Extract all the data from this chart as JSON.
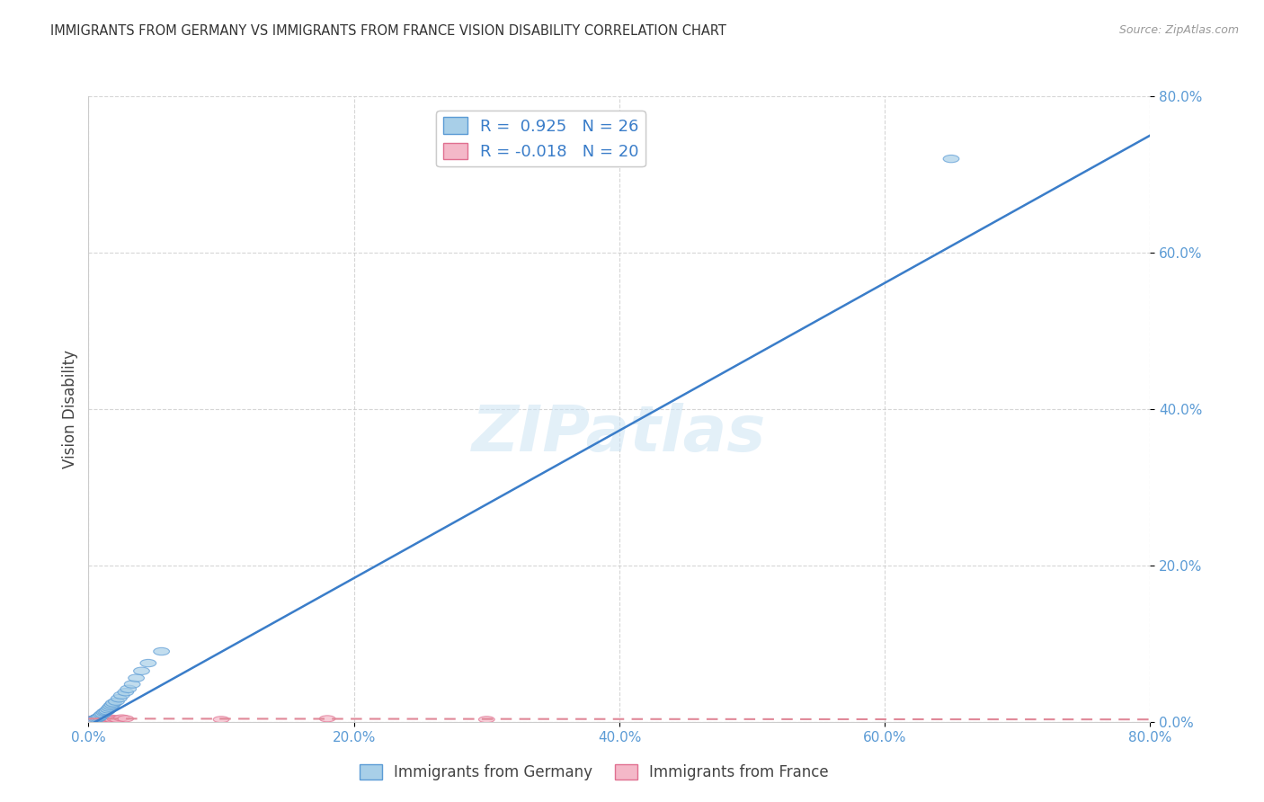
{
  "title": "IMMIGRANTS FROM GERMANY VS IMMIGRANTS FROM FRANCE VISION DISABILITY CORRELATION CHART",
  "source": "Source: ZipAtlas.com",
  "ylabel": "Vision Disability",
  "xlim": [
    0,
    0.8
  ],
  "ylim": [
    0,
    0.8
  ],
  "ytick_labels": [
    "0.0%",
    "20.0%",
    "40.0%",
    "60.0%",
    "80.0%"
  ],
  "ytick_values": [
    0.0,
    0.2,
    0.4,
    0.6,
    0.8
  ],
  "xtick_labels": [
    "0.0%",
    "20.0%",
    "40.0%",
    "60.0%",
    "80.0%"
  ],
  "xtick_values": [
    0.0,
    0.2,
    0.4,
    0.6,
    0.8
  ],
  "germany_r": 0.925,
  "germany_n": 26,
  "france_r": -0.018,
  "france_n": 20,
  "germany_color": "#a8cfe8",
  "france_color": "#f4b8c8",
  "germany_edge_color": "#5b9bd5",
  "france_edge_color": "#e07090",
  "germany_line_color": "#3a7dc9",
  "france_line_color": "#e08898",
  "watermark": "ZIPatlas",
  "germany_x": [
    0.004,
    0.006,
    0.007,
    0.008,
    0.009,
    0.01,
    0.011,
    0.012,
    0.013,
    0.014,
    0.015,
    0.016,
    0.017,
    0.018,
    0.019,
    0.021,
    0.023,
    0.025,
    0.028,
    0.03,
    0.033,
    0.036,
    0.04,
    0.045,
    0.055,
    0.65
  ],
  "germany_y": [
    0.003,
    0.004,
    0.005,
    0.006,
    0.007,
    0.009,
    0.01,
    0.012,
    0.013,
    0.014,
    0.016,
    0.018,
    0.02,
    0.022,
    0.024,
    0.026,
    0.03,
    0.034,
    0.038,
    0.042,
    0.048,
    0.056,
    0.065,
    0.075,
    0.09,
    0.72
  ],
  "france_x": [
    0.003,
    0.005,
    0.006,
    0.007,
    0.008,
    0.009,
    0.01,
    0.011,
    0.012,
    0.014,
    0.015,
    0.016,
    0.018,
    0.02,
    0.022,
    0.025,
    0.028,
    0.1,
    0.18,
    0.3
  ],
  "france_y": [
    0.003,
    0.004,
    0.003,
    0.005,
    0.003,
    0.004,
    0.005,
    0.003,
    0.004,
    0.003,
    0.004,
    0.005,
    0.003,
    0.004,
    0.003,
    0.005,
    0.004,
    0.003,
    0.004,
    0.003
  ],
  "germany_line_x0": 0.0,
  "germany_line_y0": -0.005,
  "germany_line_x1": 0.8,
  "germany_line_y1": 0.75,
  "france_line_x0": 0.0,
  "france_line_y0": 0.004,
  "france_line_x1": 0.8,
  "france_line_y1": 0.003
}
